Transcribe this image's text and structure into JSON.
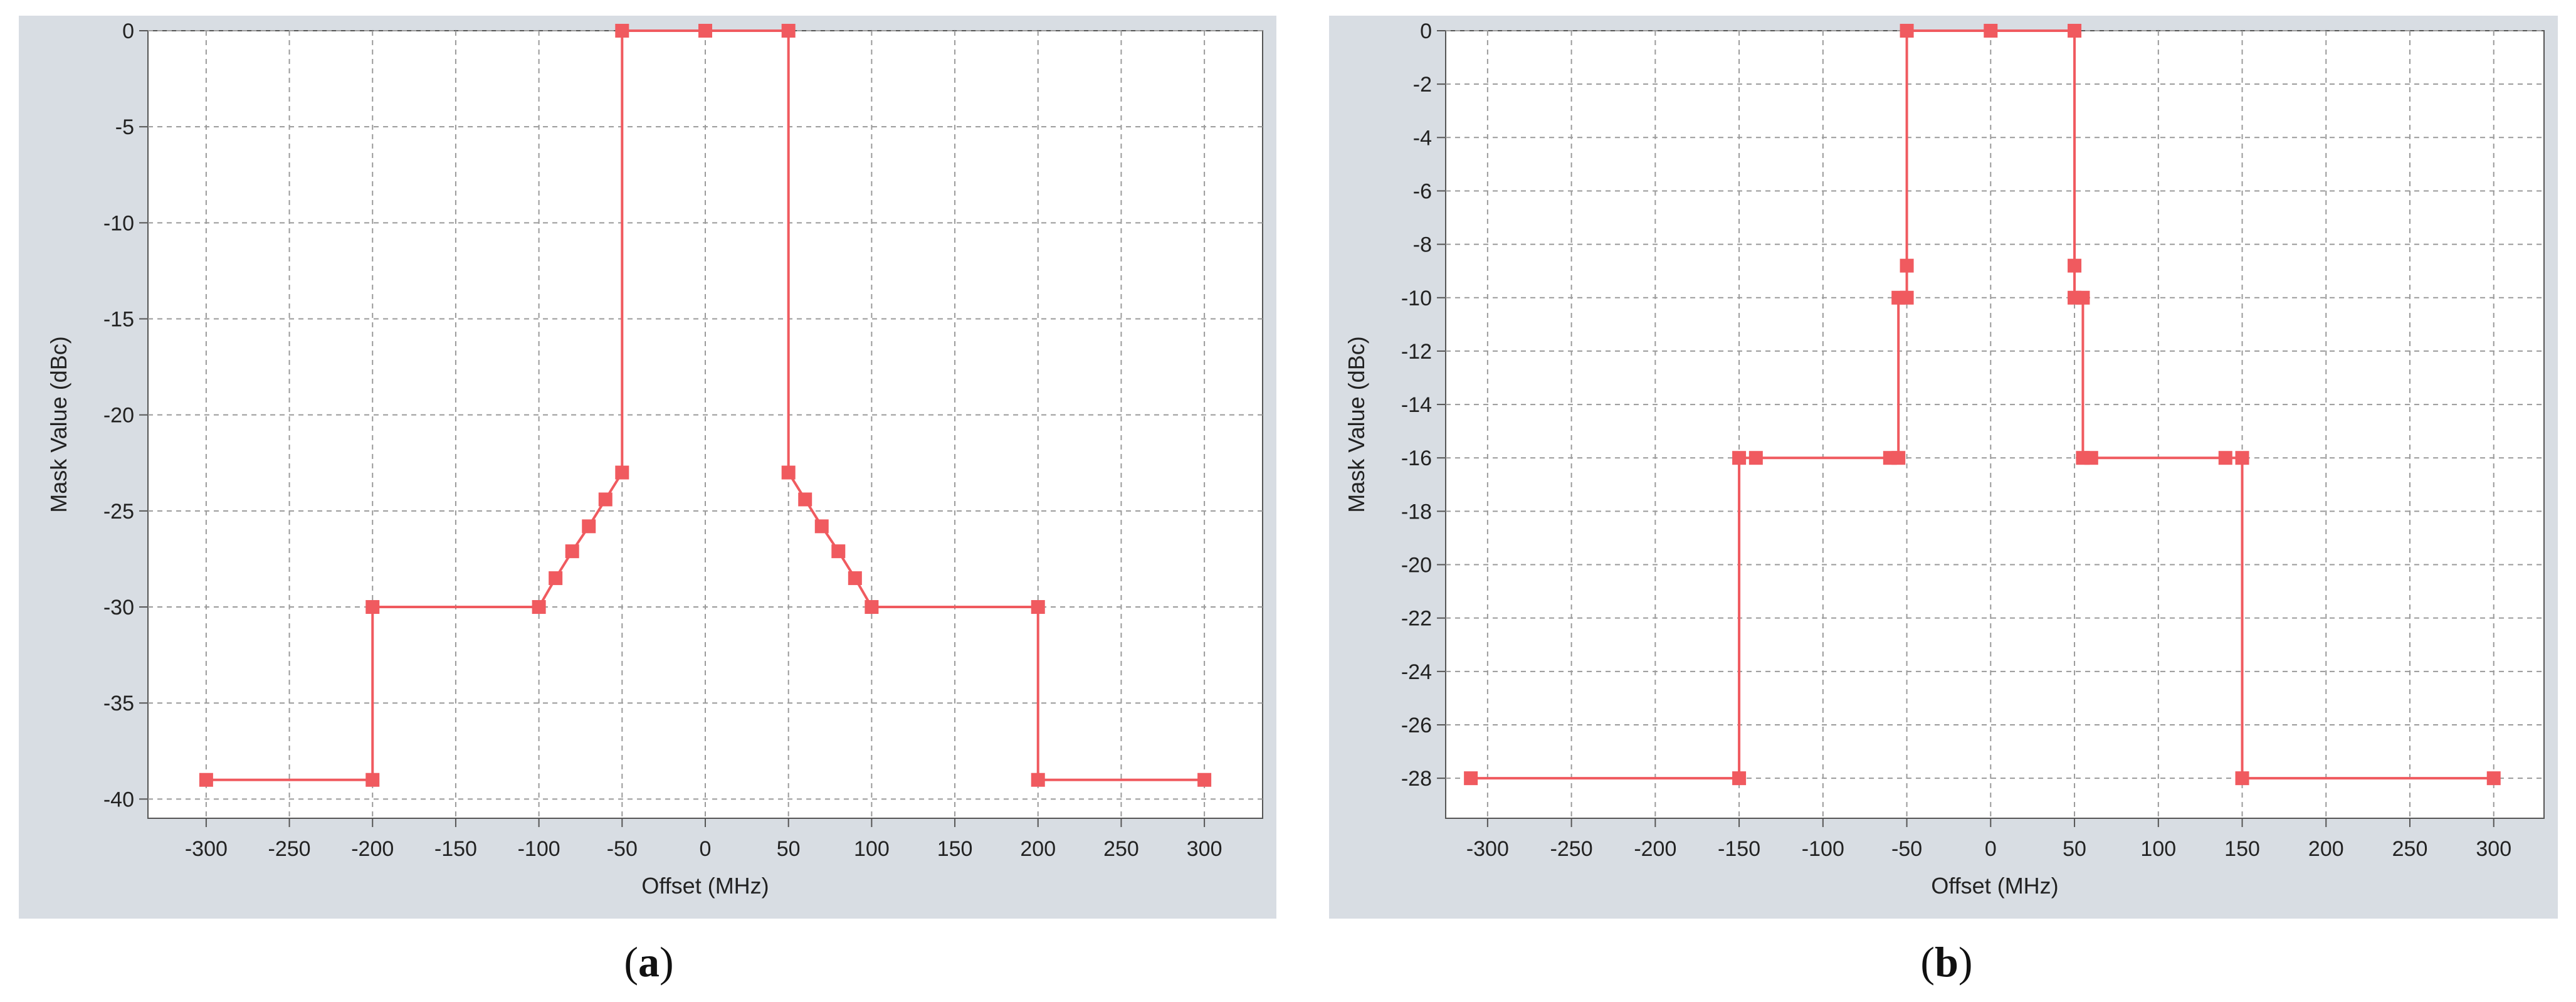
{
  "captions": {
    "a_open": "(",
    "a_letter": "a",
    "a_close": ")",
    "b_open": "(",
    "b_letter": "b",
    "b_close": ")"
  },
  "series_color": "#f05a5f",
  "panel_color": "#d8dde3",
  "chart_data": [
    {
      "type": "line",
      "xlabel": "Offset (MHz)",
      "ylabel": "Mask Value (dBc)",
      "xlim": [
        -335,
        335
      ],
      "ylim": [
        -41,
        0
      ],
      "xticks": [
        -300,
        -250,
        -200,
        -150,
        -100,
        -50,
        0,
        50,
        100,
        150,
        200,
        250,
        300
      ],
      "yticks": [
        0,
        -5,
        -10,
        -15,
        -20,
        -25,
        -30,
        -35,
        -40
      ],
      "grid": true,
      "legend": "none",
      "series": [
        {
          "x": [
            -300,
            -200,
            -200,
            -100,
            -90,
            -80,
            -70,
            -60,
            -50,
            -50,
            0,
            50,
            50,
            60,
            70,
            80,
            90,
            100,
            200,
            200,
            300
          ],
          "y": [
            -39,
            -39,
            -30,
            -30,
            -28.5,
            -27.1,
            -25.8,
            -24.4,
            -23,
            0,
            0,
            0,
            -23,
            -24.4,
            -25.8,
            -27.1,
            -28.5,
            -30,
            -30,
            -39,
            -39
          ]
        }
      ]
    },
    {
      "type": "line",
      "xlabel": "Offset (MHz)",
      "ylabel": "Mask Value (dBc)",
      "xlim": [
        -325,
        330
      ],
      "ylim": [
        -29.5,
        0
      ],
      "xticks": [
        -300,
        -250,
        -200,
        -150,
        -100,
        -50,
        0,
        50,
        100,
        150,
        200,
        250,
        300
      ],
      "yticks": [
        0,
        -2,
        -4,
        -6,
        -8,
        -10,
        -12,
        -14,
        -16,
        -18,
        -20,
        -22,
        -24,
        -26,
        -28
      ],
      "grid": true,
      "legend": "none",
      "series": [
        {
          "x": [
            -310,
            -150,
            -150,
            -140,
            -60,
            -55,
            -55,
            -50,
            -50,
            -50,
            0,
            50,
            50,
            50,
            55,
            55,
            60,
            140,
            150,
            150,
            300
          ],
          "y": [
            -28,
            -28,
            -16,
            -16,
            -16,
            -16,
            -10,
            -10,
            -8.8,
            0,
            0,
            0,
            -8.8,
            -10,
            -10,
            -16,
            -16,
            -16,
            -16,
            -28,
            -28
          ]
        }
      ]
    }
  ]
}
